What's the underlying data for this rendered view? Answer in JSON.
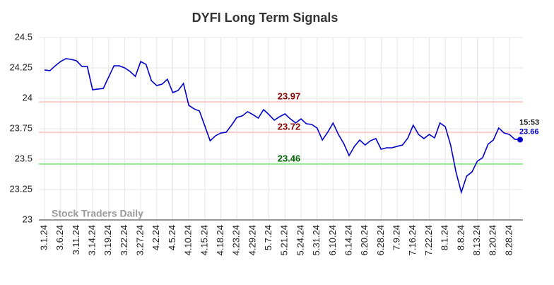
{
  "chart_data": {
    "type": "line",
    "title": "DYFI Long Term Signals",
    "categories": [
      "3.1.24",
      null,
      null,
      "3.6.24",
      null,
      null,
      "3.11.24",
      null,
      null,
      "3.14.24",
      null,
      null,
      "3.19.24",
      null,
      null,
      "3.22.24",
      null,
      null,
      "3.27.24",
      null,
      null,
      "4.2.24",
      null,
      null,
      "4.5.24",
      null,
      null,
      "4.10.24",
      null,
      null,
      "4.15.24",
      null,
      null,
      "4.18.24",
      null,
      null,
      "4.23.24",
      null,
      null,
      "4.29.24",
      null,
      null,
      "5.7.24",
      null,
      null,
      "5.21.24",
      null,
      null,
      "5.24.24",
      null,
      null,
      "5.31.24",
      null,
      null,
      "6.10.24",
      null,
      null,
      "6.14.24",
      null,
      null,
      "6.20.24",
      null,
      null,
      "6.28.24",
      null,
      null,
      "7.9.24",
      null,
      null,
      "7.16.24",
      null,
      null,
      "7.22.24",
      null,
      null,
      "8.1.24",
      null,
      null,
      "8.8.24",
      null,
      null,
      "8.13.24",
      null,
      null,
      "8.20.24",
      null,
      null,
      "8.28.24",
      null,
      null
    ],
    "values": [
      24.233,
      24.227,
      24.267,
      24.302,
      24.326,
      24.32,
      24.308,
      24.262,
      24.262,
      24.07,
      24.076,
      24.081,
      24.174,
      24.267,
      24.267,
      24.25,
      24.221,
      24.18,
      24.302,
      24.279,
      24.145,
      24.105,
      24.116,
      24.157,
      24.047,
      24.064,
      24.122,
      23.942,
      23.913,
      23.895,
      23.773,
      23.651,
      23.692,
      23.715,
      23.721,
      23.779,
      23.843,
      23.855,
      23.89,
      23.866,
      23.837,
      23.907,
      23.866,
      23.82,
      23.849,
      23.872,
      23.831,
      23.797,
      23.831,
      23.791,
      23.785,
      23.756,
      23.657,
      23.721,
      23.797,
      23.703,
      23.628,
      23.529,
      23.605,
      23.657,
      23.616,
      23.651,
      23.669,
      23.581,
      23.593,
      23.593,
      23.605,
      23.616,
      23.674,
      23.779,
      23.703,
      23.669,
      23.703,
      23.674,
      23.797,
      23.767,
      23.616,
      23.395,
      23.227,
      23.36,
      23.395,
      23.483,
      23.512,
      23.622,
      23.657,
      23.756,
      23.715,
      23.703,
      23.663,
      23.66
    ],
    "color": "#0000cc",
    "last_time": "15:53",
    "hlines": [
      {
        "value": 23.97,
        "line_color": "#ffcccc",
        "label_color": "#8b0000"
      },
      {
        "value": 23.72,
        "line_color": "#ffcccc",
        "label_color": "#8b0000"
      },
      {
        "value": 23.46,
        "line_color": "#90ee90",
        "label_color": "#006400"
      }
    ],
    "watermark": "Stock Traders Daily",
    "ylim": [
      23,
      24.5
    ],
    "yticks": [
      23,
      23.25,
      23.5,
      23.75,
      24,
      24.25,
      24.5
    ],
    "grid": true
  }
}
